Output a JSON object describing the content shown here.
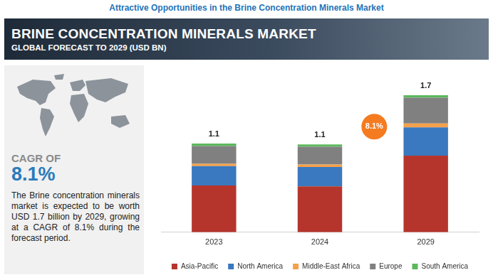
{
  "page": {
    "heading": "Attractive Opportunities in the Brine Concentration Minerals Market",
    "cagr_label": "CAGR OF",
    "cagr_value": "8.1%",
    "description": "The Brine concentration minerals market is expected to be worth USD 1.7 billion by 2029, growing at a CAGR of 8.1% during the forecast period."
  },
  "chart_data": {
    "type": "bar",
    "stacked": true,
    "title": "BRINE CONCENTRATION MINERALS MARKET",
    "subtitle": "GLOBAL FORECAST TO 2029 (USD BN)",
    "categories": [
      "2023",
      "2024",
      "2029"
    ],
    "series": [
      {
        "name": "Asia-Pacific",
        "color": "#b5352d",
        "values": [
          0.58,
          0.57,
          0.95
        ]
      },
      {
        "name": "North America",
        "color": "#3a78bf",
        "values": [
          0.24,
          0.24,
          0.35
        ]
      },
      {
        "name": "Middle-East Africa",
        "color": "#f5a04a",
        "values": [
          0.03,
          0.03,
          0.05
        ]
      },
      {
        "name": "Europe",
        "color": "#808080",
        "values": [
          0.22,
          0.22,
          0.32
        ]
      },
      {
        "name": "South America",
        "color": "#5cb85c",
        "values": [
          0.03,
          0.03,
          0.03
        ]
      }
    ],
    "totals": [
      1.1,
      1.1,
      1.7
    ],
    "annotations": [
      "8.1%"
    ],
    "ylim": [
      0,
      1.7
    ],
    "grid": false,
    "legend": "bottom",
    "tick_labels": "x"
  }
}
